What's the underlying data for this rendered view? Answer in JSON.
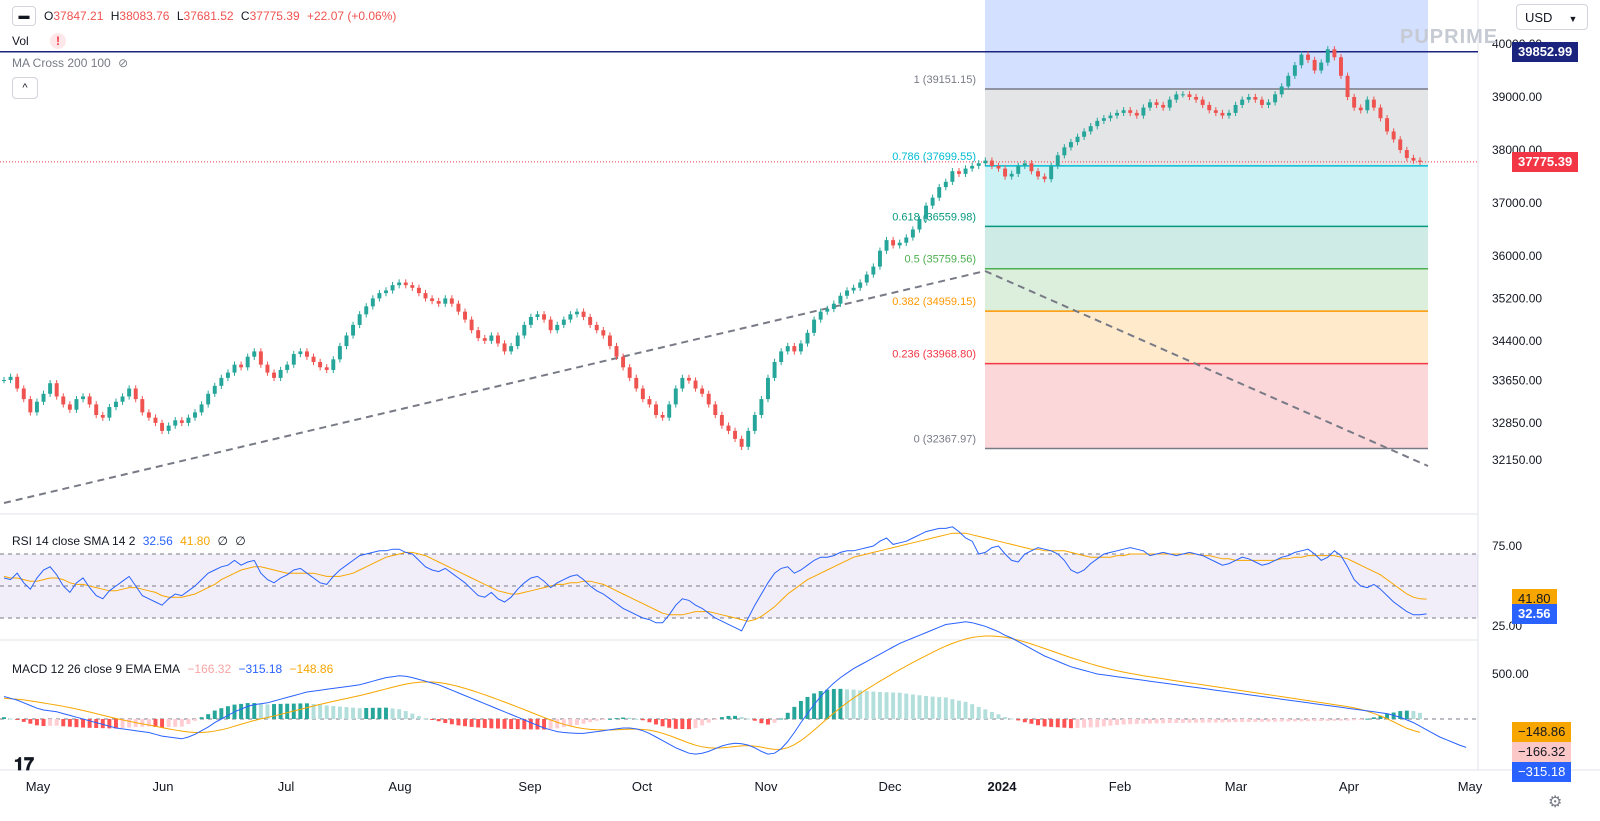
{
  "header": {
    "ohlc": {
      "o_label": "O",
      "o": "37847.21",
      "h_label": "H",
      "h": "38083.76",
      "l_label": "L",
      "l": "37681.52",
      "c_label": "C",
      "c": "37775.39",
      "change": "+22.07 (+0.06%)"
    },
    "vol_label": "Vol",
    "vol_warning": "!",
    "ma_label": "MA Cross 200 100",
    "collapse_button": "^",
    "currency": "USD",
    "watermark": "PUPRIME"
  },
  "colors": {
    "up": "#26a69a",
    "down": "#ef5350",
    "rsi_line": "#2962ff",
    "rsi_sma": "#f7a600",
    "macd_line": "#2962ff",
    "signal_line": "#f7a600",
    "hline": "#1a237e",
    "fib_1": "#787b86",
    "fib_786": "#00bcd4",
    "fib_618": "#089981",
    "fib_5": "#4caf50",
    "fib_382": "#ff9800",
    "fib_236": "#f23645",
    "fib_0": "#787b86"
  },
  "chart_data": {
    "type": "candlestick",
    "y_ticks": [
      {
        "value": 39000,
        "label": "39000.00"
      },
      {
        "value": 38000,
        "label": "38000.00"
      },
      {
        "value": 37000,
        "label": "37000.00"
      },
      {
        "value": 36000,
        "label": "36000.00"
      },
      {
        "value": 35200,
        "label": "35200.00"
      },
      {
        "value": 34400,
        "label": "34400.00"
      },
      {
        "value": 33650,
        "label": "33650.00"
      },
      {
        "value": 32850,
        "label": "32850.00"
      },
      {
        "value": 32150,
        "label": "32150.00"
      },
      {
        "value": 40000,
        "label": "40000.00"
      }
    ],
    "x_ticks": [
      "May",
      "Jun",
      "Jul",
      "Aug",
      "Sep",
      "Oct",
      "Nov",
      "Dec",
      "2024",
      "Feb",
      "Mar",
      "Apr",
      "May"
    ],
    "last_price": {
      "value": 37775.39,
      "label": "37775.39"
    },
    "horizontal_line": {
      "value": 39852.99,
      "label": "39852.99"
    },
    "fib_levels": [
      {
        "ratio": "1",
        "value": 39151.15,
        "label": "1 (39151.15)"
      },
      {
        "ratio": "0.786",
        "value": 37699.55,
        "label": "0.786 (37699.55)"
      },
      {
        "ratio": "0.618",
        "value": 36559.98,
        "label": "0.618 (36559.98)"
      },
      {
        "ratio": "0.5",
        "value": 35759.56,
        "label": "0.5 (35759.56)"
      },
      {
        "ratio": "0.382",
        "value": 34959.15,
        "label": "0.382 (34959.15)"
      },
      {
        "ratio": "0.236",
        "value": 33968.8,
        "label": "0.236 (33968.80)"
      },
      {
        "ratio": "0",
        "value": 32367.97,
        "label": "0 (32367.97)"
      }
    ],
    "closes": [
      33660,
      33720,
      33500,
      33300,
      33050,
      33250,
      33400,
      33600,
      33350,
      33200,
      33100,
      33300,
      33350,
      33200,
      33000,
      32950,
      33150,
      33250,
      33350,
      33500,
      33300,
      33050,
      32950,
      32850,
      32700,
      32800,
      32900,
      32850,
      32950,
      33050,
      33200,
      33400,
      33550,
      33700,
      33800,
      33950,
      33900,
      34100,
      34200,
      33950,
      33800,
      33700,
      33850,
      33950,
      34150,
      34200,
      34100,
      34000,
      33900,
      33850,
      34050,
      34300,
      34500,
      34700,
      34900,
      35050,
      35200,
      35300,
      35350,
      35450,
      35500,
      35450,
      35400,
      35300,
      35200,
      35150,
      35100,
      35200,
      35100,
      34950,
      34800,
      34600,
      34450,
      34400,
      34500,
      34350,
      34200,
      34300,
      34500,
      34700,
      34850,
      34900,
      34800,
      34600,
      34700,
      34800,
      34900,
      34950,
      34850,
      34700,
      34600,
      34500,
      34300,
      34100,
      33900,
      33700,
      33500,
      33300,
      33200,
      33000,
      32950,
      33200,
      33500,
      33700,
      33650,
      33500,
      33400,
      33200,
      33000,
      32800,
      32700,
      32550,
      32400,
      32700,
      33000,
      33300,
      33700,
      34000,
      34200,
      34300,
      34200,
      34350,
      34550,
      34800,
      34950,
      35000,
      35100,
      35250,
      35350,
      35400,
      35500,
      35650,
      35800,
      36100,
      36300,
      36200,
      36250,
      36350,
      36500,
      36700,
      36950,
      37100,
      37300,
      37400,
      37600,
      37550,
      37650,
      37700,
      37750,
      37800,
      37700,
      37650,
      37500,
      37550,
      37700,
      37750,
      37600,
      37500,
      37450,
      37700,
      37900,
      38050,
      38150,
      38250,
      38350,
      38450,
      38550,
      38600,
      38650,
      38700,
      38750,
      38700,
      38650,
      38800,
      38900,
      38850,
      38800,
      38950,
      39050,
      39050,
      39000,
      38950,
      38850,
      38750,
      38700,
      38650,
      38700,
      38850,
      38950,
      39000,
      38950,
      38850,
      38900,
      39050,
      39200,
      39400,
      39600,
      39800,
      39700,
      39500,
      39650,
      39900,
      39750,
      39400,
      39000,
      38800,
      38750,
      38950,
      38800,
      38600,
      38350,
      38200,
      38000,
      37850,
      37800,
      37775.39
    ],
    "rsi": {
      "label": "RSI 14 close SMA 14 2",
      "value": "32.56",
      "sma_value": "41.80",
      "na1": "∅",
      "na2": "∅",
      "ticks": [
        {
          "value": 75,
          "label": "75.00"
        },
        {
          "value": 25,
          "label": "25.00"
        }
      ],
      "upper": 70,
      "middle": 50,
      "lower": 30,
      "values": [
        55,
        54,
        58,
        52,
        48,
        55,
        60,
        62,
        57,
        50,
        46,
        52,
        55,
        49,
        44,
        42,
        47,
        50,
        53,
        56,
        50,
        44,
        42,
        40,
        38,
        42,
        45,
        44,
        47,
        50,
        54,
        58,
        60,
        62,
        63,
        66,
        63,
        65,
        66,
        58,
        54,
        52,
        55,
        57,
        60,
        61,
        58,
        55,
        52,
        51,
        56,
        60,
        63,
        66,
        69,
        70,
        71,
        72,
        72,
        73,
        73,
        71,
        70,
        66,
        62,
        60,
        59,
        61,
        58,
        55,
        52,
        48,
        44,
        43,
        46,
        42,
        40,
        43,
        48,
        52,
        55,
        56,
        53,
        49,
        52,
        54,
        56,
        57,
        54,
        50,
        47,
        45,
        42,
        39,
        36,
        34,
        32,
        30,
        29,
        27,
        27,
        32,
        38,
        42,
        41,
        38,
        36,
        33,
        30,
        28,
        26,
        24,
        22,
        30,
        38,
        45,
        52,
        58,
        61,
        62,
        58,
        60,
        63,
        66,
        68,
        68,
        69,
        71,
        72,
        72,
        73,
        74,
        75,
        78,
        80,
        76,
        77,
        78,
        80,
        82,
        84,
        85,
        86,
        86,
        87,
        84,
        80,
        78,
        70,
        71,
        74,
        75,
        70,
        66,
        65,
        70,
        72,
        74,
        73,
        72,
        70,
        66,
        60,
        58,
        60,
        64,
        67,
        70,
        71,
        72,
        73,
        74,
        73,
        72,
        69,
        70,
        71,
        70,
        69,
        70,
        71,
        70,
        69,
        67,
        65,
        63,
        64,
        66,
        68,
        67,
        65,
        63,
        64,
        66,
        68,
        69,
        71,
        72,
        73,
        70,
        66,
        68,
        72,
        69,
        62,
        54,
        50,
        49,
        51,
        48,
        44,
        40,
        37,
        34,
        32,
        32,
        32.56
      ],
      "sma": [
        56,
        55,
        55,
        54,
        53,
        53,
        54,
        55,
        55,
        54,
        52,
        51,
        51,
        50,
        49,
        48,
        47,
        47,
        48,
        49,
        49,
        48,
        47,
        46,
        44,
        43,
        43,
        43,
        44,
        45,
        47,
        49,
        51,
        54,
        56,
        58,
        60,
        61,
        62,
        62,
        61,
        60,
        59,
        58,
        58,
        58,
        58,
        58,
        57,
        56,
        56,
        56,
        57,
        58,
        60,
        62,
        64,
        66,
        68,
        69,
        70,
        71,
        71,
        70,
        69,
        67,
        65,
        63,
        61,
        59,
        57,
        55,
        53,
        51,
        49,
        47,
        46,
        45,
        45,
        46,
        47,
        48,
        49,
        50,
        51,
        51,
        52,
        52,
        53,
        53,
        52,
        51,
        49,
        47,
        45,
        43,
        41,
        39,
        37,
        35,
        33,
        32,
        32,
        32,
        33,
        34,
        34,
        34,
        33,
        32,
        31,
        30,
        29,
        28,
        29,
        31,
        34,
        37,
        41,
        45,
        48,
        51,
        54,
        56,
        58,
        60,
        62,
        64,
        66,
        68,
        69,
        70,
        71,
        72,
        73,
        74,
        75,
        76,
        77,
        78,
        79,
        80,
        81,
        82,
        83,
        83,
        83,
        82,
        81,
        80,
        79,
        78,
        77,
        76,
        75,
        74,
        73,
        73,
        72,
        72,
        72,
        72,
        71,
        70,
        69,
        68,
        68,
        68,
        68,
        69,
        69,
        70,
        70,
        70,
        70,
        70,
        70,
        70,
        70,
        70,
        70,
        70,
        69,
        69,
        68,
        67,
        67,
        66,
        66,
        66,
        66,
        66,
        66,
        66,
        67,
        67,
        68,
        68,
        69,
        69,
        69,
        69,
        69,
        68,
        67,
        65,
        63,
        61,
        59,
        57,
        54,
        51,
        48,
        45,
        43,
        42,
        41.8
      ]
    },
    "macd": {
      "label": "MACD 12 26 close 9 EMA EMA",
      "hist_value": "−166.32",
      "macd_value": "−315.18",
      "signal_value": "−148.86",
      "tick": {
        "value": 500,
        "label": "500.00"
      },
      "values": [
        250,
        230,
        210,
        180,
        150,
        120,
        100,
        90,
        80,
        60,
        40,
        20,
        0,
        -20,
        -40,
        -60,
        -80,
        -100,
        -110,
        -120,
        -130,
        -140,
        -150,
        -170,
        -190,
        -200,
        -210,
        -220,
        -200,
        -170,
        -130,
        -90,
        -40,
        0,
        40,
        80,
        110,
        140,
        160,
        170,
        180,
        200,
        220,
        240,
        260,
        280,
        300,
        310,
        320,
        330,
        340,
        350,
        360,
        370,
        380,
        400,
        420,
        440,
        460,
        470,
        480,
        475,
        460,
        440,
        420,
        400,
        380,
        350,
        320,
        290,
        260,
        230,
        200,
        170,
        140,
        110,
        80,
        50,
        20,
        -10,
        -40,
        -70,
        -100,
        -120,
        -140,
        -150,
        -155,
        -160,
        -160,
        -150,
        -140,
        -130,
        -120,
        -110,
        -100,
        -100,
        -110,
        -130,
        -160,
        -200,
        -240,
        -280,
        -320,
        -350,
        -380,
        -390,
        -380,
        -360,
        -330,
        -300,
        -280,
        -270,
        -275,
        -290,
        -320,
        -360,
        -390,
        -380,
        -330,
        -250,
        -150,
        -40,
        60,
        160,
        250,
        330,
        400,
        460,
        510,
        560,
        600,
        640,
        680,
        720,
        760,
        800,
        840,
        870,
        900,
        930,
        960,
        990,
        1020,
        1050,
        1060,
        1070,
        1080,
        1070,
        1050,
        1030,
        1000,
        970,
        930,
        900,
        860,
        820,
        780,
        740,
        700,
        670,
        640,
        610,
        580,
        560,
        540,
        520,
        500,
        490,
        480,
        470,
        460,
        450,
        440,
        430,
        420,
        410,
        400,
        390,
        380,
        370,
        360,
        350,
        340,
        330,
        320,
        310,
        300,
        290,
        280,
        270,
        260,
        250,
        240,
        230,
        220,
        210,
        200,
        190,
        180,
        170,
        160,
        150,
        140,
        130,
        120,
        110,
        100,
        90,
        80,
        70,
        60,
        40,
        20,
        -10,
        -40,
        -80,
        -120,
        -160,
        -200,
        -230,
        -260,
        -290,
        -315.18
      ],
      "signal": [
        230,
        225,
        220,
        212,
        202,
        190,
        178,
        166,
        154,
        141,
        126,
        111,
        95,
        78,
        60,
        42,
        24,
        6,
        -10,
        -25,
        -40,
        -54,
        -67,
        -81,
        -96,
        -110,
        -123,
        -135,
        -145,
        -150,
        -150,
        -144,
        -134,
        -120,
        -102,
        -80,
        -58,
        -37,
        -17,
        1,
        17,
        34,
        52,
        70,
        89,
        107,
        126,
        144,
        162,
        179,
        196,
        212,
        228,
        244,
        260,
        278,
        296,
        315,
        334,
        353,
        371,
        387,
        400,
        408,
        412,
        411,
        405,
        394,
        379,
        361,
        340,
        318,
        294,
        269,
        243,
        216,
        189,
        161,
        133,
        104,
        75,
        46,
        17,
        -10,
        -36,
        -59,
        -78,
        -94,
        -107,
        -115,
        -120,
        -122,
        -122,
        -120,
        -116,
        -113,
        -112,
        -116,
        -124,
        -139,
        -159,
        -183,
        -211,
        -239,
        -267,
        -291,
        -309,
        -320,
        -324,
        -321,
        -314,
        -305,
        -298,
        -296,
        -301,
        -313,
        -328,
        -338,
        -336,
        -319,
        -285,
        -240,
        -185,
        -124,
        -60,
        4,
        66,
        125,
        180,
        233,
        282,
        330,
        375,
        420,
        463,
        506,
        548,
        588,
        628,
        666,
        704,
        741,
        777,
        810,
        840,
        866,
        889,
        905,
        916,
        922,
        922,
        917,
        908,
        894,
        876,
        856,
        833,
        809,
        783,
        758,
        732,
        707,
        682,
        659,
        636,
        613,
        592,
        572,
        553,
        536,
        521,
        507,
        494,
        481,
        470,
        458,
        447,
        435,
        424,
        413,
        402,
        391,
        380,
        369,
        358,
        347,
        336,
        325,
        314,
        303,
        292,
        281,
        270,
        259,
        248,
        237,
        226,
        215,
        204,
        193,
        182,
        171,
        160,
        149,
        138,
        124,
        107,
        86,
        62,
        34,
        3,
        -32,
        -68,
        -103,
        -128,
        -148.86
      ]
    }
  }
}
